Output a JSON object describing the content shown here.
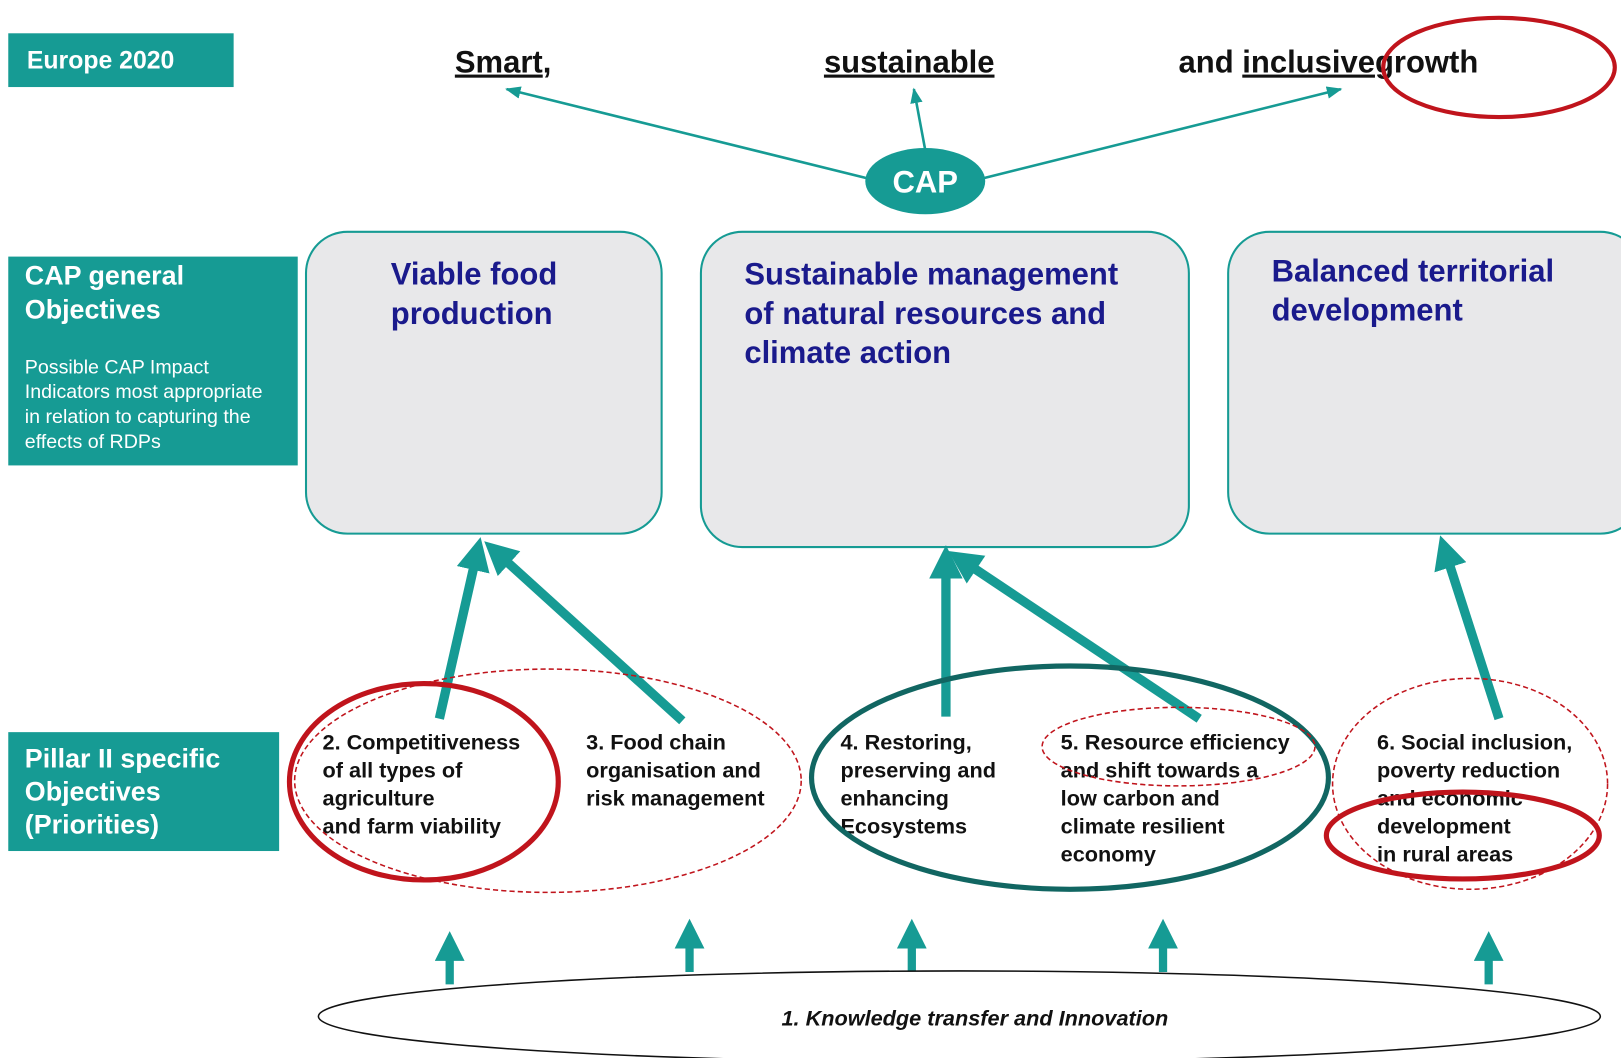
{
  "labels": {
    "europe": "Europe 2020",
    "general": [
      "CAP general",
      "Objectives"
    ],
    "general_note": [
      "Possible CAP Impact",
      "Indicators most appropriate",
      "in relation to capturing the",
      "effects of RDPs"
    ],
    "pillar": [
      "Pillar II specific",
      "Objectives",
      "(Priorities)"
    ]
  },
  "growth": {
    "smart": "Smart",
    "smart_punct": ",",
    "sustainable": "sustainable",
    "and": "and",
    "inclusive": "inclusive",
    "growth": "growth"
  },
  "hub": "CAP",
  "general_objectives": [
    [
      "Viable food",
      "production"
    ],
    [
      "Sustainable management",
      "of natural resources and",
      "climate action"
    ],
    [
      "Balanced territorial",
      "development"
    ]
  ],
  "priorities": [
    [
      "2. Competitiveness",
      "of all types of",
      "agriculture",
      "and farm viability"
    ],
    [
      "3. Food chain",
      "organisation and",
      "risk management"
    ],
    [
      "4. Restoring,",
      "preserving and",
      "enhancing",
      "Ecosystems"
    ],
    [
      "5. Resource efficiency",
      "and shift towards a",
      "low carbon and",
      "climate resilient",
      "economy"
    ],
    [
      "6. Social inclusion,",
      "poverty reduction",
      "and economic",
      "development",
      "in rural areas"
    ]
  ],
  "knowledge": "1. Knowledge transfer and Innovation"
}
